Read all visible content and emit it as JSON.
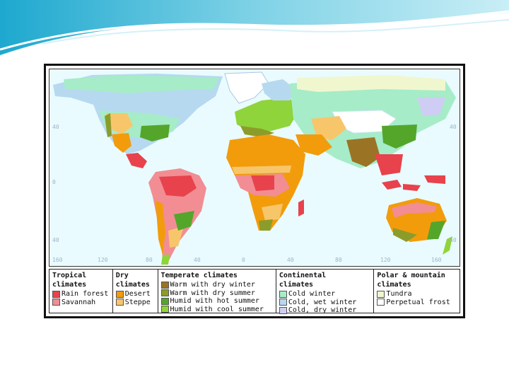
{
  "map": {
    "lat_labels": [
      "40",
      "0",
      "40"
    ],
    "lon_labels": [
      "160",
      "120",
      "80",
      "40",
      "0",
      "40",
      "80",
      "120",
      "160"
    ]
  },
  "legend": {
    "tropical": {
      "title_line1": "Tropical",
      "title_line2": "climates",
      "items": [
        {
          "label": "Rain forest",
          "color": "#e8424d"
        },
        {
          "label": "Savannah",
          "color": "#f28d94"
        }
      ]
    },
    "dry": {
      "title_line1": "Dry",
      "title_line2": "climates",
      "items": [
        {
          "label": "Desert",
          "color": "#f29c0c"
        },
        {
          "label": "Steppe",
          "color": "#f7c66b"
        }
      ]
    },
    "temperate": {
      "title_line1": "Temperate climates",
      "items": [
        {
          "label": "Warm with dry winter",
          "color": "#9a7424"
        },
        {
          "label": "Warm with dry summer",
          "color": "#8c9c2a"
        },
        {
          "label": "Humid with hot summer",
          "color": "#54a62b"
        },
        {
          "label": "Humid with cool summer",
          "color": "#8fd43a"
        }
      ]
    },
    "continental": {
      "title_line1": "Continental",
      "title_line2": "climates",
      "items": [
        {
          "label": "Cold winter",
          "color": "#a6ecc8"
        },
        {
          "label": "Cold, wet winter",
          "color": "#b6d9f0"
        },
        {
          "label": "Cold, dry winter",
          "color": "#cfcdf3"
        }
      ]
    },
    "polar": {
      "title_line1": "Polar & mountain",
      "title_line2": "climates",
      "items": [
        {
          "label": "Tundra",
          "color": "#f0f7cf"
        },
        {
          "label": "Perpetual frost",
          "color": "#ffffff"
        }
      ]
    }
  }
}
